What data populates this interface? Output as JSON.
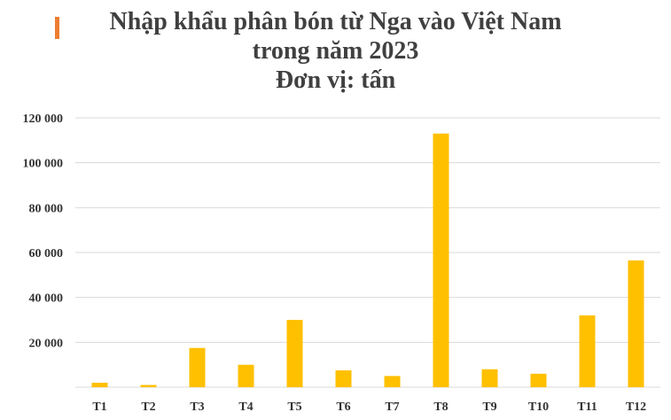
{
  "header": {
    "title_lines": [
      "Nhập khẩu phân bón từ Nga vào Việt Nam",
      "trong năm 2023",
      "Đơn vị: tấn"
    ]
  },
  "colors": {
    "bar": "#FFC000",
    "accent": "#ED7D31",
    "grid": "#D9D9D9",
    "text": "#404040"
  },
  "chart_data": {
    "type": "bar",
    "title": "Nhập khẩu phân bón từ Nga vào Việt Nam trong năm 2023",
    "subtitle": "Đơn vị: tấn",
    "categories": [
      "T1",
      "T2",
      "T3",
      "T4",
      "T5",
      "T6",
      "T7",
      "T8",
      "T9",
      "T10",
      "T11",
      "T12"
    ],
    "values": [
      2000,
      1000,
      17500,
      10000,
      30000,
      7500,
      5000,
      113000,
      8000,
      6000,
      32000,
      56500
    ],
    "ylim": [
      0,
      120000
    ],
    "yticks": [
      0,
      20000,
      40000,
      60000,
      80000,
      100000,
      120000
    ],
    "ytick_labels": [
      "",
      "20 000",
      "40 000",
      "60 000",
      "80 000",
      "100 000",
      "120 000"
    ],
    "grid": true,
    "legend": "none"
  }
}
